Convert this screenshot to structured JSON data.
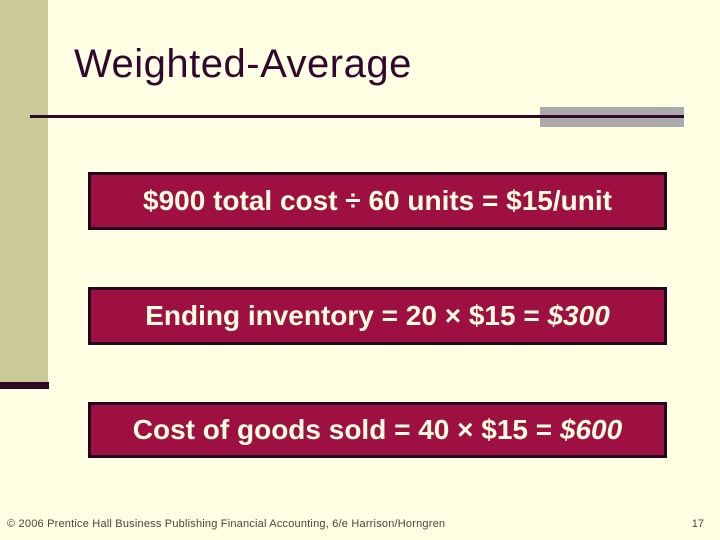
{
  "slide": {
    "title": "Weighted-Average",
    "boxes": [
      {
        "prefix": "$900 total cost ÷ 60 units = $15/unit",
        "italic": ""
      },
      {
        "prefix": "Ending inventory = 20 × $15 = ",
        "italic": "$300"
      },
      {
        "prefix": "Cost of goods sold = 40 × $15 = ",
        "italic": "$600"
      }
    ],
    "footer": "© 2006 Prentice Hall Business Publishing Financial Accounting, 6/e Harrison/Horngren",
    "page_number": "17",
    "colors": {
      "background_cream": "#FFFFE4",
      "tan_band": "#CACA99",
      "dark_plum": "#2E0824",
      "title_plum": "#33062F",
      "box_fill_crimson": "#9E1041",
      "box_border": "#24041C",
      "box_text_cream": "#FFFFE0",
      "rule_gray": "#AAAAAA",
      "footer_gray": "#45453D"
    }
  }
}
